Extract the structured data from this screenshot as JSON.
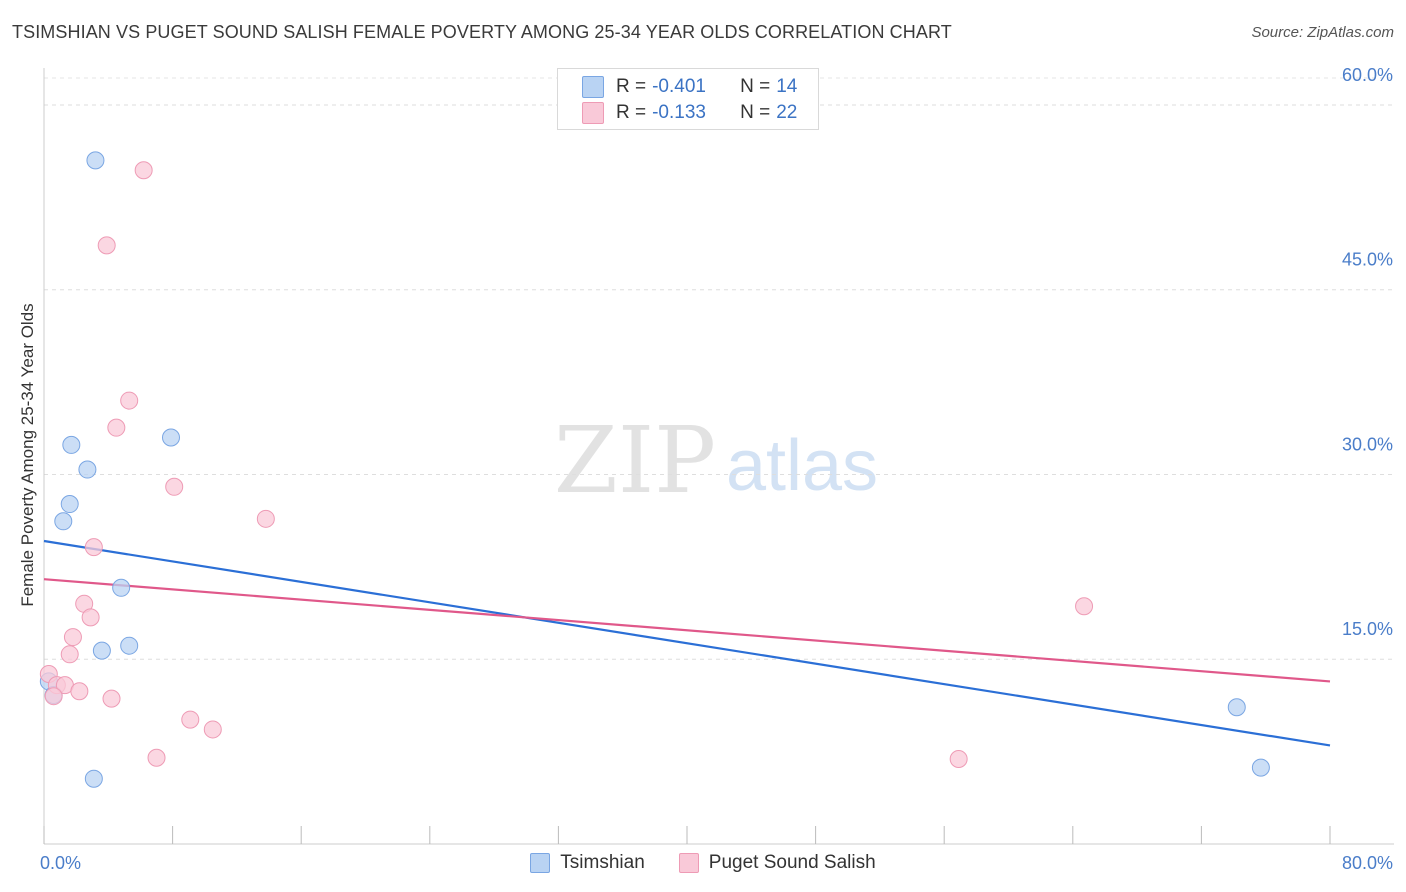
{
  "title": "TSIMSHIAN VS PUGET SOUND SALISH FEMALE POVERTY AMONG 25-34 YEAR OLDS CORRELATION CHART",
  "source": "Source: ZipAtlas.com",
  "watermark": {
    "zip": "ZIP",
    "atlas": "atlas"
  },
  "stats_legend": [
    {
      "r_label": "R =",
      "r_value": "-0.401",
      "n_label": "N =",
      "n_value": "14",
      "fill": "#b9d3f3",
      "stroke": "#7aa6e3"
    },
    {
      "r_label": "R =",
      "r_value": "-0.133",
      "n_label": "N =",
      "n_value": "22",
      "fill": "#f9c9d8",
      "stroke": "#ee9bb5"
    }
  ],
  "chart_data": {
    "type": "scatter",
    "title": "TSIMSHIAN VS PUGET SOUND SALISH FEMALE POVERTY AMONG 25-34 YEAR OLDS CORRELATION CHART",
    "xlabel": "",
    "ylabel": "Female Poverty Among 25-34 Year Olds",
    "xlim": [
      0,
      80
    ],
    "ylim": [
      0,
      63
    ],
    "x_tick_labels": [
      {
        "value": 0,
        "label": "0.0%"
      },
      {
        "value": 80,
        "label": "80.0%"
      }
    ],
    "y_tick_labels": [
      {
        "value": 15,
        "label": "15.0%"
      },
      {
        "value": 30,
        "label": "30.0%"
      },
      {
        "value": 45,
        "label": "45.0%"
      },
      {
        "value": 60,
        "label": "60.0%"
      }
    ],
    "x_minor_ticks": [
      0,
      8,
      16,
      24,
      32,
      40,
      48,
      56,
      64,
      72,
      80
    ],
    "grid": true,
    "series": [
      {
        "name": "Tsimshian",
        "fill": "#b9d3f3",
        "stroke": "#7aa6e3",
        "line_color": "#2b6fd6",
        "points": [
          {
            "x": 3.2,
            "y": 55.5
          },
          {
            "x": 1.7,
            "y": 32.4
          },
          {
            "x": 2.7,
            "y": 30.4
          },
          {
            "x": 1.6,
            "y": 27.6
          },
          {
            "x": 1.2,
            "y": 26.2
          },
          {
            "x": 7.9,
            "y": 33.0
          },
          {
            "x": 4.8,
            "y": 20.8
          },
          {
            "x": 5.3,
            "y": 16.1
          },
          {
            "x": 3.6,
            "y": 15.7
          },
          {
            "x": 0.3,
            "y": 13.2
          },
          {
            "x": 0.6,
            "y": 12.1
          },
          {
            "x": 3.1,
            "y": 5.3
          },
          {
            "x": 74.2,
            "y": 11.1
          },
          {
            "x": 75.7,
            "y": 6.2
          }
        ],
        "trend": {
          "x1": 0,
          "y1": 24.6,
          "x2": 80,
          "y2": 8.0
        }
      },
      {
        "name": "Puget Sound Salish",
        "fill": "#f9c9d8",
        "stroke": "#ee9bb5",
        "line_color": "#e0588a",
        "points": [
          {
            "x": 6.2,
            "y": 54.7
          },
          {
            "x": 3.9,
            "y": 48.6
          },
          {
            "x": 5.3,
            "y": 36.0
          },
          {
            "x": 4.5,
            "y": 33.8
          },
          {
            "x": 8.1,
            "y": 29.0
          },
          {
            "x": 13.8,
            "y": 26.4
          },
          {
            "x": 3.1,
            "y": 24.1
          },
          {
            "x": 2.5,
            "y": 19.5
          },
          {
            "x": 2.9,
            "y": 18.4
          },
          {
            "x": 1.8,
            "y": 16.8
          },
          {
            "x": 1.6,
            "y": 15.4
          },
          {
            "x": 0.3,
            "y": 13.8
          },
          {
            "x": 0.8,
            "y": 12.9
          },
          {
            "x": 1.3,
            "y": 12.9
          },
          {
            "x": 2.2,
            "y": 12.4
          },
          {
            "x": 0.6,
            "y": 12.0
          },
          {
            "x": 4.2,
            "y": 11.8
          },
          {
            "x": 9.1,
            "y": 10.1
          },
          {
            "x": 10.5,
            "y": 9.3
          },
          {
            "x": 7.0,
            "y": 7.0
          },
          {
            "x": 56.9,
            "y": 6.9
          },
          {
            "x": 64.7,
            "y": 19.3
          }
        ],
        "trend": {
          "x1": 0,
          "y1": 21.5,
          "x2": 80,
          "y2": 13.2
        }
      }
    ]
  }
}
